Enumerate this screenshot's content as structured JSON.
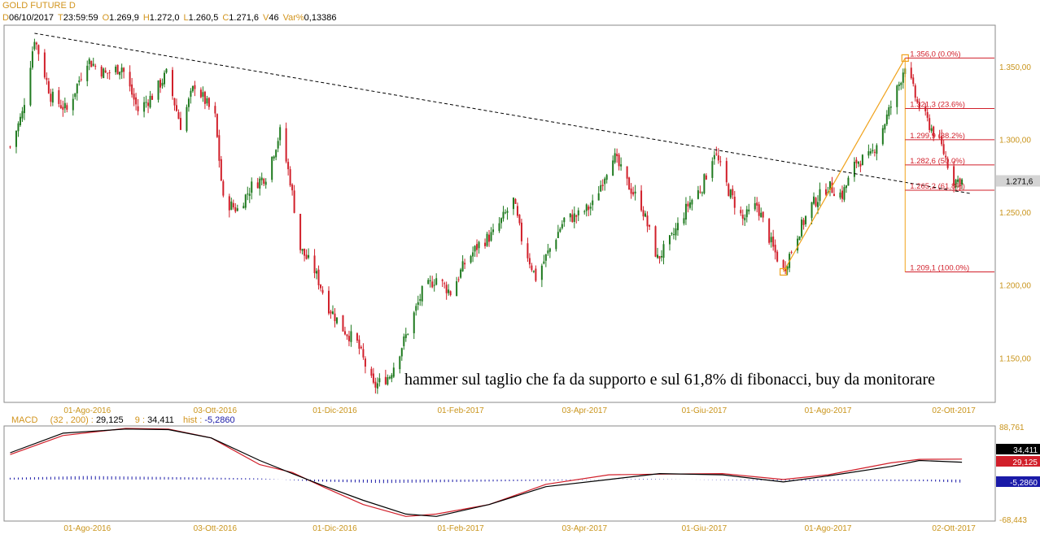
{
  "header": {
    "title": "GOLD FUTURE D",
    "quote": [
      {
        "key": "D",
        "value": "06/10/2017"
      },
      {
        "key": "T",
        "value": "23:59:59"
      },
      {
        "key": "O",
        "value": "1.269,9"
      },
      {
        "key": "H",
        "value": "1.272,0"
      },
      {
        "key": "L",
        "value": "1.260,5"
      },
      {
        "key": "C",
        "value": "1.271,6"
      },
      {
        "key": "V",
        "value": "46"
      },
      {
        "key": "Var%",
        "value": "0,13386"
      }
    ]
  },
  "macd": {
    "label": "MACD",
    "params": "(32 , 200) :",
    "macd_value": "29,125",
    "signal_label": "9 :",
    "signal_value": "34,411",
    "hist_label": "hist :",
    "hist_value": "-5,2860"
  },
  "colors": {
    "up": "#1f7a1f",
    "down": "#d11f2a",
    "axis_text": "#c9941b",
    "fib_line": "#d11f2a",
    "fib_frame": "#f0a21c",
    "macd_line": "#000000",
    "signal_line": "#d11f2a",
    "histogram": "#1a1aa8"
  },
  "chart_data": [
    {
      "type": "candlestick",
      "title": "GOLD FUTURE D",
      "x_tick_labels": [
        "01-Ago-2016",
        "03-Ott-2016",
        "01-Dic-2016",
        "01-Feb-2017",
        "03-Apr-2017",
        "01-Giu-2017",
        "01-Ago-2017",
        "02-Ott-2017"
      ],
      "ylim": [
        1120,
        1378
      ],
      "y_tick_labels": [
        "1.350,00",
        "1.300,00",
        "1.250,00",
        "1.200,00",
        "1.150,00"
      ],
      "y_ticks": [
        1350,
        1300,
        1250,
        1200,
        1150
      ],
      "last_price": 1271.6,
      "last_price_label": "1.271,6",
      "close_path": [
        {
          "date": "2016-06-24",
          "close": 1295
        },
        {
          "date": "2016-06-30",
          "close": 1318
        },
        {
          "date": "2016-07-06",
          "close": 1370
        },
        {
          "date": "2016-07-14",
          "close": 1330
        },
        {
          "date": "2016-07-22",
          "close": 1320
        },
        {
          "date": "2016-08-01",
          "close": 1355
        },
        {
          "date": "2016-08-10",
          "close": 1345
        },
        {
          "date": "2016-08-18",
          "close": 1350
        },
        {
          "date": "2016-08-26",
          "close": 1320
        },
        {
          "date": "2016-09-02",
          "close": 1330
        },
        {
          "date": "2016-09-09",
          "close": 1345
        },
        {
          "date": "2016-09-16",
          "close": 1310
        },
        {
          "date": "2016-09-23",
          "close": 1338
        },
        {
          "date": "2016-10-03",
          "close": 1315
        },
        {
          "date": "2016-10-07",
          "close": 1258
        },
        {
          "date": "2016-10-14",
          "close": 1252
        },
        {
          "date": "2016-10-21",
          "close": 1268
        },
        {
          "date": "2016-10-28",
          "close": 1275
        },
        {
          "date": "2016-11-04",
          "close": 1305
        },
        {
          "date": "2016-11-09",
          "close": 1272
        },
        {
          "date": "2016-11-14",
          "close": 1225
        },
        {
          "date": "2016-11-21",
          "close": 1210
        },
        {
          "date": "2016-11-28",
          "close": 1185
        },
        {
          "date": "2016-12-05",
          "close": 1170
        },
        {
          "date": "2016-12-12",
          "close": 1160
        },
        {
          "date": "2016-12-20",
          "close": 1130
        },
        {
          "date": "2016-12-28",
          "close": 1138
        },
        {
          "date": "2017-01-05",
          "close": 1165
        },
        {
          "date": "2017-01-13",
          "close": 1195
        },
        {
          "date": "2017-01-20",
          "close": 1205
        },
        {
          "date": "2017-01-27",
          "close": 1195
        },
        {
          "date": "2017-02-03",
          "close": 1215
        },
        {
          "date": "2017-02-10",
          "close": 1228
        },
        {
          "date": "2017-02-17",
          "close": 1235
        },
        {
          "date": "2017-02-27",
          "close": 1258
        },
        {
          "date": "2017-03-03",
          "close": 1232
        },
        {
          "date": "2017-03-10",
          "close": 1205
        },
        {
          "date": "2017-03-17",
          "close": 1225
        },
        {
          "date": "2017-03-24",
          "close": 1245
        },
        {
          "date": "2017-03-31",
          "close": 1248
        },
        {
          "date": "2017-04-07",
          "close": 1255
        },
        {
          "date": "2017-04-17",
          "close": 1290
        },
        {
          "date": "2017-04-24",
          "close": 1270
        },
        {
          "date": "2017-05-01",
          "close": 1255
        },
        {
          "date": "2017-05-09",
          "close": 1218
        },
        {
          "date": "2017-05-16",
          "close": 1232
        },
        {
          "date": "2017-05-24",
          "close": 1255
        },
        {
          "date": "2017-05-31",
          "close": 1268
        },
        {
          "date": "2017-06-06",
          "close": 1292
        },
        {
          "date": "2017-06-13",
          "close": 1265
        },
        {
          "date": "2017-06-20",
          "close": 1245
        },
        {
          "date": "2017-06-27",
          "close": 1255
        },
        {
          "date": "2017-07-05",
          "close": 1225
        },
        {
          "date": "2017-07-10",
          "close": 1210
        },
        {
          "date": "2017-07-17",
          "close": 1235
        },
        {
          "date": "2017-07-24",
          "close": 1255
        },
        {
          "date": "2017-08-01",
          "close": 1268
        },
        {
          "date": "2017-08-08",
          "close": 1262
        },
        {
          "date": "2017-08-15",
          "close": 1285
        },
        {
          "date": "2017-08-22",
          "close": 1288
        },
        {
          "date": "2017-08-29",
          "close": 1312
        },
        {
          "date": "2017-09-05",
          "close": 1338
        },
        {
          "date": "2017-09-08",
          "close": 1352
        },
        {
          "date": "2017-09-14",
          "close": 1325
        },
        {
          "date": "2017-09-20",
          "close": 1310
        },
        {
          "date": "2017-09-26",
          "close": 1295
        },
        {
          "date": "2017-10-02",
          "close": 1272
        },
        {
          "date": "2017-10-06",
          "close": 1271.6
        }
      ],
      "trendline": [
        {
          "date": "2016-07-06",
          "value": 1373
        },
        {
          "date": "2017-10-10",
          "value": 1263
        }
      ],
      "fibonacci": {
        "anchor_low": {
          "date": "2017-07-10",
          "value": 1209.1
        },
        "anchor_high": {
          "date": "2017-09-08",
          "value": 1356.0
        },
        "levels": [
          {
            "value": 1356.0,
            "label": "1.356,0 (0.0%)"
          },
          {
            "value": 1321.3,
            "label": "1.321,3 (23.6%)"
          },
          {
            "value": 1299.9,
            "label": "1.299,9 (38.2%)"
          },
          {
            "value": 1282.6,
            "label": "1.282,6 (50.0%)"
          },
          {
            "value": 1265.2,
            "label": "1.265,2 (61.8%)"
          },
          {
            "value": 1209.1,
            "label": "1.209,1 (100.0%)"
          }
        ]
      },
      "annotation": "hammer sul taglio che fa da supporto e sul 61,8% di fibonacci, buy da monitorare"
    },
    {
      "type": "line",
      "title": "MACD",
      "ylim": [
        -68.443,
        88.761
      ],
      "y_tick_labels": [
        "88,761",
        "-68,443"
      ],
      "x_tick_labels": [
        "01-Ago-2016",
        "03-Ott-2016",
        "01-Dic-2016",
        "01-Feb-2017",
        "03-Apr-2017",
        "01-Giu-2017",
        "01-Ago-2017",
        "02-Ott-2017"
      ],
      "last_values": [
        {
          "label": "34,411",
          "value": 34.411
        },
        {
          "label": "29,125",
          "value": 29.125
        },
        {
          "label": "-5,2860",
          "value": -5.286
        }
      ],
      "series": [
        {
          "name": "MACD",
          "points": [
            {
              "date": "2016-06-24",
              "value": 45
            },
            {
              "date": "2016-07-20",
              "value": 78
            },
            {
              "date": "2016-08-20",
              "value": 85
            },
            {
              "date": "2016-09-10",
              "value": 84
            },
            {
              "date": "2016-10-01",
              "value": 70
            },
            {
              "date": "2016-10-25",
              "value": 32
            },
            {
              "date": "2016-11-10",
              "value": 10
            },
            {
              "date": "2016-11-25",
              "value": -10
            },
            {
              "date": "2016-12-15",
              "value": -35
            },
            {
              "date": "2017-01-05",
              "value": -58
            },
            {
              "date": "2017-01-20",
              "value": -62
            },
            {
              "date": "2017-02-15",
              "value": -42
            },
            {
              "date": "2017-03-15",
              "value": -12
            },
            {
              "date": "2017-04-15",
              "value": 0
            },
            {
              "date": "2017-05-10",
              "value": 10
            },
            {
              "date": "2017-06-10",
              "value": 8
            },
            {
              "date": "2017-07-10",
              "value": -4
            },
            {
              "date": "2017-08-01",
              "value": 6
            },
            {
              "date": "2017-09-01",
              "value": 22
            },
            {
              "date": "2017-09-15",
              "value": 32
            },
            {
              "date": "2017-10-06",
              "value": 29.125
            }
          ]
        },
        {
          "name": "Signal",
          "points": [
            {
              "date": "2016-06-24",
              "value": 42
            },
            {
              "date": "2016-07-20",
              "value": 74
            },
            {
              "date": "2016-08-20",
              "value": 86
            },
            {
              "date": "2016-09-10",
              "value": 85
            },
            {
              "date": "2016-10-01",
              "value": 70
            },
            {
              "date": "2016-10-25",
              "value": 25
            },
            {
              "date": "2016-11-10",
              "value": 12
            },
            {
              "date": "2016-11-25",
              "value": -12
            },
            {
              "date": "2016-12-15",
              "value": -42
            },
            {
              "date": "2017-01-05",
              "value": -62
            },
            {
              "date": "2017-01-20",
              "value": -58
            },
            {
              "date": "2017-02-15",
              "value": -42
            },
            {
              "date": "2017-03-15",
              "value": -8
            },
            {
              "date": "2017-04-15",
              "value": 8
            },
            {
              "date": "2017-05-10",
              "value": 9
            },
            {
              "date": "2017-06-10",
              "value": 10
            },
            {
              "date": "2017-07-10",
              "value": 0
            },
            {
              "date": "2017-08-01",
              "value": 8
            },
            {
              "date": "2017-09-01",
              "value": 28
            },
            {
              "date": "2017-09-15",
              "value": 34
            },
            {
              "date": "2017-10-06",
              "value": 34.411
            }
          ]
        },
        {
          "name": "hist",
          "points": [
            {
              "date": "2016-06-24",
              "value": 3
            },
            {
              "date": "2016-08-01",
              "value": 6
            },
            {
              "date": "2016-09-15",
              "value": 4
            },
            {
              "date": "2016-10-25",
              "value": 2
            },
            {
              "date": "2016-11-20",
              "value": -3
            },
            {
              "date": "2016-12-25",
              "value": -6
            },
            {
              "date": "2017-02-01",
              "value": -4
            },
            {
              "date": "2017-03-15",
              "value": -2
            },
            {
              "date": "2017-05-01",
              "value": 1
            },
            {
              "date": "2017-06-15",
              "value": -1
            },
            {
              "date": "2017-07-20",
              "value": -2
            },
            {
              "date": "2017-08-20",
              "value": -2
            },
            {
              "date": "2017-09-20",
              "value": -3
            },
            {
              "date": "2017-10-06",
              "value": -5.286
            }
          ]
        }
      ]
    }
  ]
}
